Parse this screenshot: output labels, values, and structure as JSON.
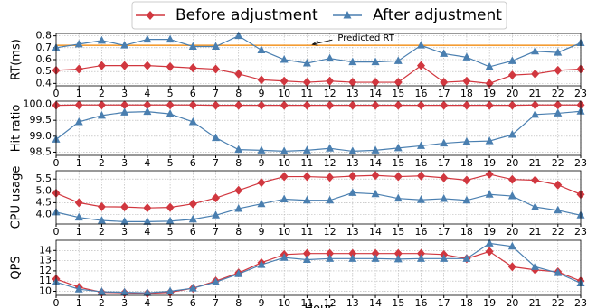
{
  "chart_data": [
    {
      "type": "line",
      "ylabel": "RT(ms)",
      "x": [
        0,
        1,
        2,
        3,
        4,
        5,
        6,
        7,
        8,
        9,
        10,
        11,
        12,
        13,
        14,
        15,
        16,
        17,
        18,
        19,
        20,
        21,
        22,
        23
      ],
      "xlim": [
        0,
        23
      ],
      "xticks": [
        0,
        1,
        2,
        3,
        4,
        5,
        6,
        7,
        8,
        9,
        10,
        11,
        12,
        13,
        14,
        15,
        16,
        17,
        18,
        19,
        20,
        21,
        22,
        23
      ],
      "ylim": [
        0.38,
        0.82
      ],
      "yticks": [
        0.4,
        0.5,
        0.6,
        0.7,
        0.8
      ],
      "grid": true,
      "legend": "top",
      "hline": {
        "value": 0.72,
        "label": "Predicted RT",
        "color": "#f39c33",
        "x": 11
      },
      "series": [
        {
          "name": "Before adjustment",
          "color": "#d1373f",
          "marker": "diamond",
          "values": [
            0.51,
            0.52,
            0.55,
            0.55,
            0.55,
            0.54,
            0.53,
            0.52,
            0.48,
            0.43,
            0.42,
            0.41,
            0.42,
            0.41,
            0.41,
            0.41,
            0.55,
            0.41,
            0.42,
            0.4,
            0.47,
            0.48,
            0.51,
            0.52
          ]
        },
        {
          "name": "After adjustment",
          "color": "#4a7fb0",
          "marker": "triangle",
          "values": [
            0.7,
            0.73,
            0.76,
            0.72,
            0.77,
            0.77,
            0.71,
            0.71,
            0.8,
            0.68,
            0.6,
            0.57,
            0.61,
            0.58,
            0.58,
            0.59,
            0.72,
            0.65,
            0.62,
            0.54,
            0.59,
            0.67,
            0.66,
            0.74
          ]
        }
      ]
    },
    {
      "type": "line",
      "ylabel": "Hit ratio",
      "x": [
        0,
        1,
        2,
        3,
        4,
        5,
        6,
        7,
        8,
        9,
        10,
        11,
        12,
        13,
        14,
        15,
        16,
        17,
        18,
        19,
        20,
        21,
        22,
        23
      ],
      "xlim": [
        0,
        23
      ],
      "xticks": [
        0,
        1,
        2,
        3,
        4,
        5,
        6,
        7,
        8,
        9,
        10,
        11,
        12,
        13,
        14,
        15,
        16,
        17,
        18,
        19,
        20,
        21,
        22,
        23
      ],
      "ylim": [
        98.4,
        100.1
      ],
      "yticks": [
        98.5,
        {
          "value": 99,
          "label": "99.0"
        },
        99.5,
        {
          "value": 100,
          "label": "100.0"
        }
      ],
      "grid": true,
      "series": [
        {
          "color": "#d1373f",
          "marker": "diamond",
          "values": [
            99.97,
            99.98,
            99.98,
            99.98,
            99.98,
            99.98,
            99.98,
            99.97,
            99.97,
            99.97,
            99.97,
            99.97,
            99.97,
            99.97,
            99.97,
            99.97,
            99.97,
            99.97,
            99.97,
            99.97,
            99.97,
            99.98,
            99.98,
            99.98
          ]
        },
        {
          "color": "#4a7fb0",
          "marker": "triangle",
          "values": [
            98.9,
            99.45,
            99.65,
            99.75,
            99.77,
            99.7,
            99.45,
            98.95,
            98.58,
            98.56,
            98.53,
            98.56,
            98.62,
            98.53,
            98.56,
            98.63,
            98.7,
            98.78,
            98.83,
            98.85,
            99.05,
            99.68,
            99.72,
            99.78
          ]
        }
      ]
    },
    {
      "type": "line",
      "ylabel": "CPU usage",
      "x": [
        0,
        1,
        2,
        3,
        4,
        5,
        6,
        7,
        8,
        9,
        10,
        11,
        12,
        13,
        14,
        15,
        16,
        17,
        18,
        19,
        20,
        21,
        22,
        23
      ],
      "xlim": [
        0,
        23
      ],
      "xticks": [
        0,
        1,
        2,
        3,
        4,
        5,
        6,
        7,
        8,
        9,
        10,
        11,
        12,
        13,
        14,
        15,
        16,
        17,
        18,
        19,
        20,
        21,
        22,
        23
      ],
      "ylim": [
        3.6,
        5.85
      ],
      "yticks": [
        {
          "value": 4,
          "label": "4.0"
        },
        4.5,
        {
          "value": 5,
          "label": "5.0"
        },
        5.5
      ],
      "grid": true,
      "series": [
        {
          "color": "#d1373f",
          "marker": "diamond",
          "values": [
            4.9,
            4.5,
            4.33,
            4.32,
            4.28,
            4.3,
            4.45,
            4.7,
            5.02,
            5.35,
            5.6,
            5.6,
            5.57,
            5.62,
            5.65,
            5.6,
            5.63,
            5.55,
            5.45,
            5.7,
            5.48,
            5.45,
            5.25,
            4.85
          ]
        },
        {
          "color": "#4a7fb0",
          "marker": "triangle",
          "values": [
            4.1,
            3.88,
            3.75,
            3.7,
            3.7,
            3.72,
            3.8,
            3.97,
            4.25,
            4.45,
            4.65,
            4.6,
            4.6,
            4.92,
            4.87,
            4.68,
            4.62,
            4.67,
            4.6,
            4.85,
            4.78,
            4.32,
            4.18,
            3.97
          ]
        }
      ]
    },
    {
      "type": "line",
      "ylabel": "QPS",
      "xlabel": "Hour",
      "x": [
        0,
        1,
        2,
        3,
        4,
        5,
        6,
        7,
        8,
        9,
        10,
        11,
        12,
        13,
        14,
        15,
        16,
        17,
        18,
        19,
        20,
        21,
        22,
        23
      ],
      "xlim": [
        0,
        23
      ],
      "xticks": [
        0,
        1,
        2,
        3,
        4,
        5,
        6,
        7,
        8,
        9,
        10,
        11,
        12,
        13,
        14,
        15,
        16,
        17,
        18,
        19,
        20,
        21,
        22,
        23
      ],
      "ylim": [
        9.6,
        15
      ],
      "yticks": [
        10,
        11,
        12,
        13,
        14
      ],
      "grid": true,
      "series": [
        {
          "color": "#d1373f",
          "marker": "diamond",
          "values": [
            11.2,
            10.4,
            9.9,
            9.85,
            9.8,
            9.9,
            10.3,
            11.0,
            11.8,
            12.8,
            13.6,
            13.7,
            13.7,
            13.7,
            13.7,
            13.7,
            13.7,
            13.6,
            13.2,
            13.9,
            12.4,
            12.1,
            11.9,
            11.0
          ]
        },
        {
          "color": "#4a7fb0",
          "marker": "triangle",
          "values": [
            10.9,
            10.2,
            9.95,
            9.9,
            9.85,
            10.0,
            10.3,
            10.9,
            11.7,
            12.6,
            13.3,
            13.1,
            13.2,
            13.2,
            13.2,
            13.15,
            13.2,
            13.2,
            13.2,
            14.7,
            14.4,
            12.4,
            11.8,
            10.8
          ]
        }
      ]
    }
  ]
}
